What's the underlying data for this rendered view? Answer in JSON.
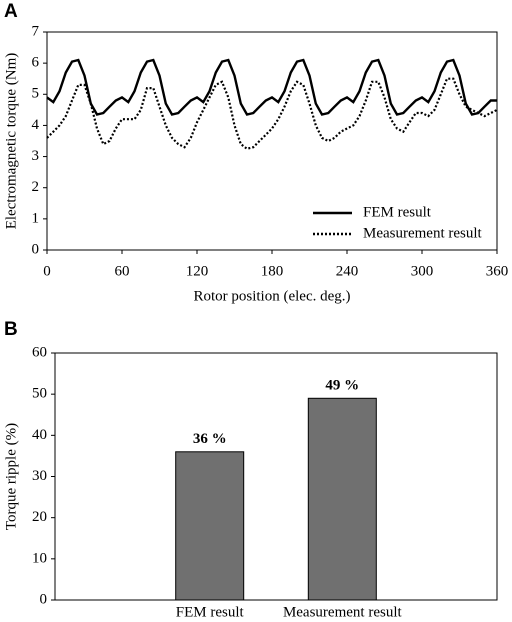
{
  "chart_data": [
    {
      "type": "line",
      "panel_label": "A",
      "x_label": "Rotor position (elec. deg.)",
      "y_label": "Electromagnetic torque (Nm)",
      "x": [
        0,
        5,
        10,
        15,
        20,
        25,
        30,
        35,
        40,
        45,
        50,
        55,
        60,
        65,
        70,
        75,
        80,
        85,
        90,
        95,
        100,
        105,
        110,
        115,
        120,
        125,
        130,
        135,
        140,
        145,
        150,
        155,
        160,
        165,
        170,
        175,
        180,
        185,
        190,
        195,
        200,
        205,
        210,
        215,
        220,
        225,
        230,
        235,
        240,
        245,
        250,
        255,
        260,
        265,
        270,
        275,
        280,
        285,
        290,
        295,
        300,
        305,
        310,
        315,
        320,
        325,
        330,
        335,
        340,
        345,
        350,
        355,
        360
      ],
      "series": [
        {
          "name": "FEM result",
          "color": "#000000",
          "line_style": "solid",
          "values": [
            4.9,
            4.75,
            5.1,
            5.7,
            6.05,
            6.1,
            5.6,
            4.7,
            4.35,
            4.4,
            4.6,
            4.8,
            4.9,
            4.75,
            5.1,
            5.7,
            6.05,
            6.1,
            5.6,
            4.7,
            4.35,
            4.4,
            4.6,
            4.8,
            4.9,
            4.75,
            5.1,
            5.7,
            6.05,
            6.1,
            5.6,
            4.7,
            4.35,
            4.4,
            4.6,
            4.8,
            4.9,
            4.75,
            5.1,
            5.7,
            6.05,
            6.1,
            5.6,
            4.7,
            4.35,
            4.4,
            4.6,
            4.8,
            4.9,
            4.75,
            5.1,
            5.7,
            6.05,
            6.1,
            5.6,
            4.7,
            4.35,
            4.4,
            4.6,
            4.8,
            4.9,
            4.75,
            5.1,
            5.7,
            6.05,
            6.1,
            5.6,
            4.7,
            4.35,
            4.4,
            4.6,
            4.8,
            4.8
          ]
        },
        {
          "name": "Measurement result",
          "color": "#000000",
          "line_style": "dotted",
          "values": [
            3.6,
            3.8,
            4.0,
            4.3,
            4.8,
            5.3,
            5.3,
            4.7,
            3.9,
            3.4,
            3.5,
            3.9,
            4.2,
            4.2,
            4.2,
            4.5,
            5.2,
            5.2,
            4.6,
            4.0,
            3.6,
            3.4,
            3.3,
            3.6,
            4.1,
            4.5,
            4.9,
            5.3,
            5.4,
            4.9,
            4.0,
            3.4,
            3.25,
            3.3,
            3.5,
            3.7,
            3.9,
            4.2,
            4.6,
            5.1,
            5.4,
            5.3,
            4.7,
            4.0,
            3.6,
            3.5,
            3.6,
            3.8,
            3.9,
            4.0,
            4.3,
            4.8,
            5.4,
            5.4,
            4.9,
            4.2,
            3.9,
            3.8,
            4.1,
            4.4,
            4.4,
            4.3,
            4.5,
            5.0,
            5.5,
            5.5,
            5.0,
            4.6,
            4.5,
            4.4,
            4.3,
            4.4,
            4.5
          ]
        }
      ],
      "xlim": [
        0,
        360
      ],
      "xticks": [
        0,
        60,
        120,
        180,
        240,
        300,
        360
      ],
      "ylim": [
        0,
        7
      ],
      "yticks": [
        0,
        1,
        2,
        3,
        4,
        5,
        6,
        7
      ],
      "legend": "lower right"
    },
    {
      "type": "bar",
      "panel_label": "B",
      "y_label": "Torque ripple (%)",
      "categories": [
        "FEM result",
        "Measurement result"
      ],
      "values": [
        36,
        49
      ],
      "value_labels": [
        "36 %",
        "49 %"
      ],
      "color": "#707070",
      "ylim": [
        0,
        60
      ],
      "yticks": [
        0,
        10,
        20,
        30,
        40,
        50,
        60
      ]
    }
  ]
}
